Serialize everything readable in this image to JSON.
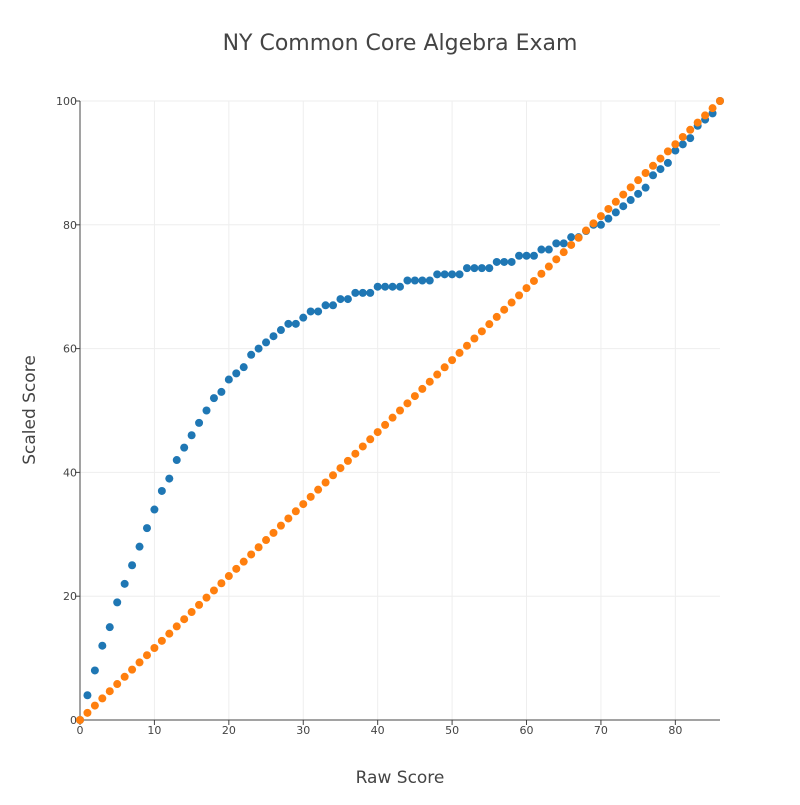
{
  "chart_data": {
    "type": "scatter",
    "title": "NY Common Core Algebra Exam",
    "xlabel": "Raw Score",
    "ylabel": "Scaled Score",
    "xlim": [
      0,
      86
    ],
    "ylim": [
      0,
      100
    ],
    "x_ticks": [
      "0",
      "10",
      "20",
      "30",
      "40",
      "50",
      "60",
      "70",
      "80"
    ],
    "y_ticks": [
      "0",
      "20",
      "40",
      "60",
      "80",
      "100"
    ],
    "grid": true,
    "legend": "none",
    "colors": {
      "series_1": "#1f77b4",
      "series_2": "#ff7f0e"
    },
    "series": [
      {
        "color": "#1f77b4",
        "x": [
          0,
          1,
          2,
          3,
          4,
          5,
          6,
          7,
          8,
          9,
          10,
          11,
          12,
          13,
          14,
          15,
          16,
          17,
          18,
          19,
          20,
          21,
          22,
          23,
          24,
          25,
          26,
          27,
          28,
          29,
          30,
          31,
          32,
          33,
          34,
          35,
          36,
          37,
          38,
          39,
          40,
          41,
          42,
          43,
          44,
          45,
          46,
          47,
          48,
          49,
          50,
          51,
          52,
          53,
          54,
          55,
          56,
          57,
          58,
          59,
          60,
          61,
          62,
          63,
          64,
          65,
          66,
          67,
          68,
          69,
          70,
          71,
          72,
          73,
          74,
          75,
          76,
          77,
          78,
          79,
          80,
          81,
          82,
          83,
          84,
          85,
          86
        ],
        "y": [
          0,
          4,
          8,
          12,
          15,
          19,
          22,
          25,
          28,
          31,
          34,
          37,
          39,
          42,
          44,
          46,
          48,
          50,
          52,
          53,
          55,
          56,
          57,
          59,
          60,
          61,
          62,
          63,
          64,
          64,
          65,
          66,
          66,
          67,
          67,
          68,
          68,
          69,
          69,
          69,
          70,
          70,
          70,
          70,
          71,
          71,
          71,
          71,
          72,
          72,
          72,
          72,
          73,
          73,
          73,
          73,
          74,
          74,
          74,
          75,
          75,
          75,
          76,
          76,
          77,
          77,
          78,
          78,
          79,
          80,
          80,
          81,
          82,
          83,
          84,
          85,
          86,
          88,
          89,
          90,
          92,
          93,
          94,
          96,
          97,
          98,
          100
        ]
      },
      {
        "color": "#ff7f0e",
        "x": [
          0,
          1,
          2,
          3,
          4,
          5,
          6,
          7,
          8,
          9,
          10,
          11,
          12,
          13,
          14,
          15,
          16,
          17,
          18,
          19,
          20,
          21,
          22,
          23,
          24,
          25,
          26,
          27,
          28,
          29,
          30,
          31,
          32,
          33,
          34,
          35,
          36,
          37,
          38,
          39,
          40,
          41,
          42,
          43,
          44,
          45,
          46,
          47,
          48,
          49,
          50,
          51,
          52,
          53,
          54,
          55,
          56,
          57,
          58,
          59,
          60,
          61,
          62,
          63,
          64,
          65,
          66,
          67,
          68,
          69,
          70,
          71,
          72,
          73,
          74,
          75,
          76,
          77,
          78,
          79,
          80,
          81,
          82,
          83,
          84,
          85,
          86
        ],
        "y": [
          0,
          1.16,
          2.33,
          3.49,
          4.65,
          5.81,
          6.98,
          8.14,
          9.3,
          10.47,
          11.63,
          12.79,
          13.95,
          15.12,
          16.28,
          17.44,
          18.6,
          19.77,
          20.93,
          22.09,
          23.26,
          24.42,
          25.58,
          26.74,
          27.91,
          29.07,
          30.23,
          31.4,
          32.56,
          33.72,
          34.88,
          36.05,
          37.21,
          38.37,
          39.53,
          40.7,
          41.86,
          43.02,
          44.19,
          45.35,
          46.51,
          47.67,
          48.84,
          50,
          51.16,
          52.33,
          53.49,
          54.65,
          55.81,
          56.98,
          58.14,
          59.3,
          60.47,
          61.63,
          62.79,
          63.95,
          65.12,
          66.28,
          67.44,
          68.6,
          69.77,
          70.93,
          72.09,
          73.26,
          74.42,
          75.58,
          76.74,
          77.91,
          79.07,
          80.23,
          81.4,
          82.56,
          83.72,
          84.88,
          86.05,
          87.21,
          88.37,
          89.53,
          90.7,
          91.86,
          93.02,
          94.19,
          95.35,
          96.51,
          97.67,
          98.84,
          100
        ]
      }
    ]
  }
}
